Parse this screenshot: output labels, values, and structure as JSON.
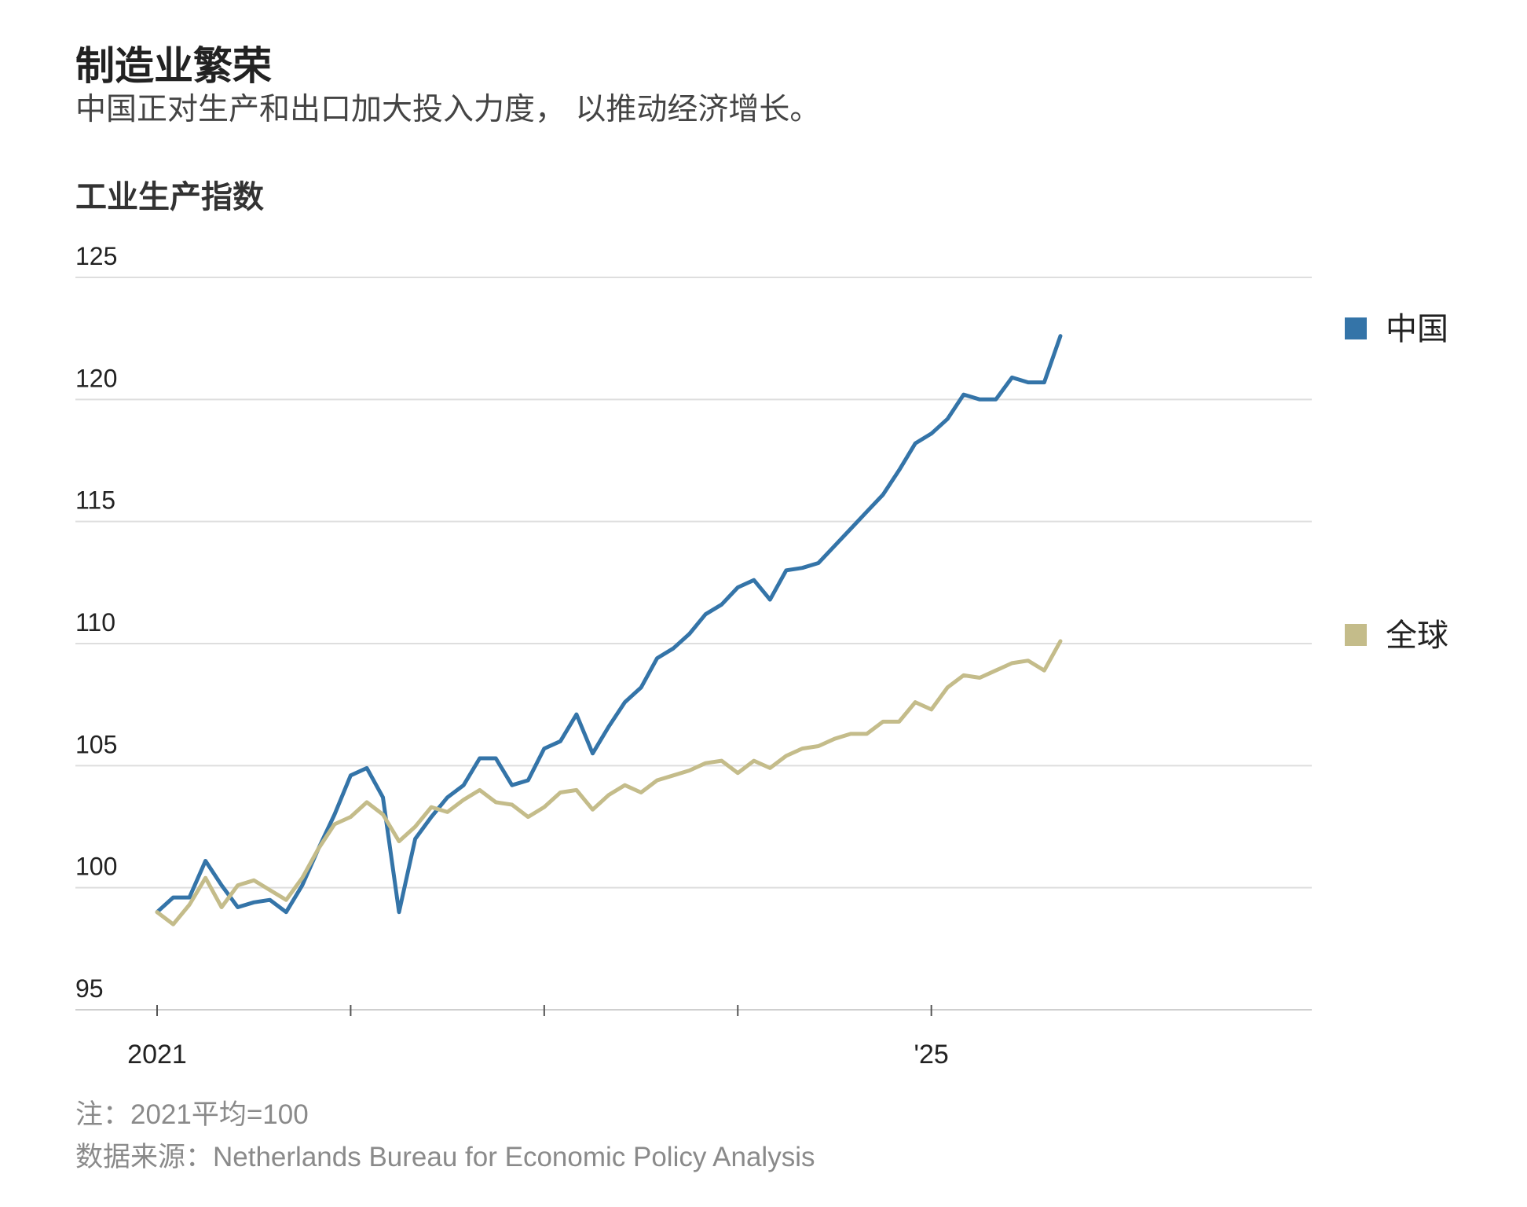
{
  "title": "制造业繁荣",
  "subtitle": "中国正对生产和出口加大投入力度， 以推动经济增长。",
  "chart_data": {
    "type": "line",
    "title": "工业生产指数",
    "xlabel": "",
    "ylabel": "",
    "ylim": [
      95,
      125
    ],
    "yticks": [
      95,
      100,
      105,
      110,
      115,
      120,
      125
    ],
    "ytick_labels": [
      "95",
      "100",
      "105",
      "110",
      "115",
      "120",
      "125"
    ],
    "xlim": [
      0,
      71
    ],
    "xticks": [
      0,
      12,
      24,
      36,
      48
    ],
    "xtick_labels": [
      "2021",
      "",
      "",
      "",
      "'25"
    ],
    "grid": true,
    "legend_position": "right",
    "series": [
      {
        "name": "中国",
        "color": "#3474a8",
        "values": [
          99.0,
          99.6,
          99.6,
          101.1,
          100.1,
          99.2,
          99.4,
          99.5,
          99.0,
          100.1,
          101.6,
          103.0,
          104.6,
          104.9,
          103.7,
          99.0,
          102.0,
          102.9,
          103.7,
          104.2,
          105.3,
          105.3,
          104.2,
          104.4,
          105.7,
          106.0,
          107.1,
          105.5,
          106.6,
          107.6,
          108.2,
          109.4,
          109.8,
          110.4,
          111.2,
          111.6,
          112.3,
          112.6,
          111.8,
          113.0,
          113.1,
          113.3,
          114.0,
          114.7,
          115.4,
          116.1,
          117.1,
          118.2,
          118.6,
          119.2,
          120.2,
          120.0,
          120.0,
          120.9,
          120.7,
          120.7,
          122.6
        ]
      },
      {
        "name": "全球",
        "color": "#c4bc8a",
        "values": [
          99.0,
          98.5,
          99.3,
          100.4,
          99.2,
          100.1,
          100.3,
          99.9,
          99.5,
          100.4,
          101.6,
          102.6,
          102.9,
          103.5,
          103.0,
          101.9,
          102.5,
          103.3,
          103.1,
          103.6,
          104.0,
          103.5,
          103.4,
          102.9,
          103.3,
          103.9,
          104.0,
          103.2,
          103.8,
          104.2,
          103.9,
          104.4,
          104.6,
          104.8,
          105.1,
          105.2,
          104.7,
          105.2,
          104.9,
          105.4,
          105.7,
          105.8,
          106.1,
          106.3,
          106.3,
          106.8,
          106.8,
          107.6,
          107.3,
          108.2,
          108.7,
          108.6,
          108.9,
          109.2,
          109.3,
          108.9,
          110.1
        ]
      }
    ]
  },
  "footer": {
    "note": "注：2021平均=100",
    "source": "数据来源：Netherlands Bureau for Economic Policy Analysis"
  }
}
